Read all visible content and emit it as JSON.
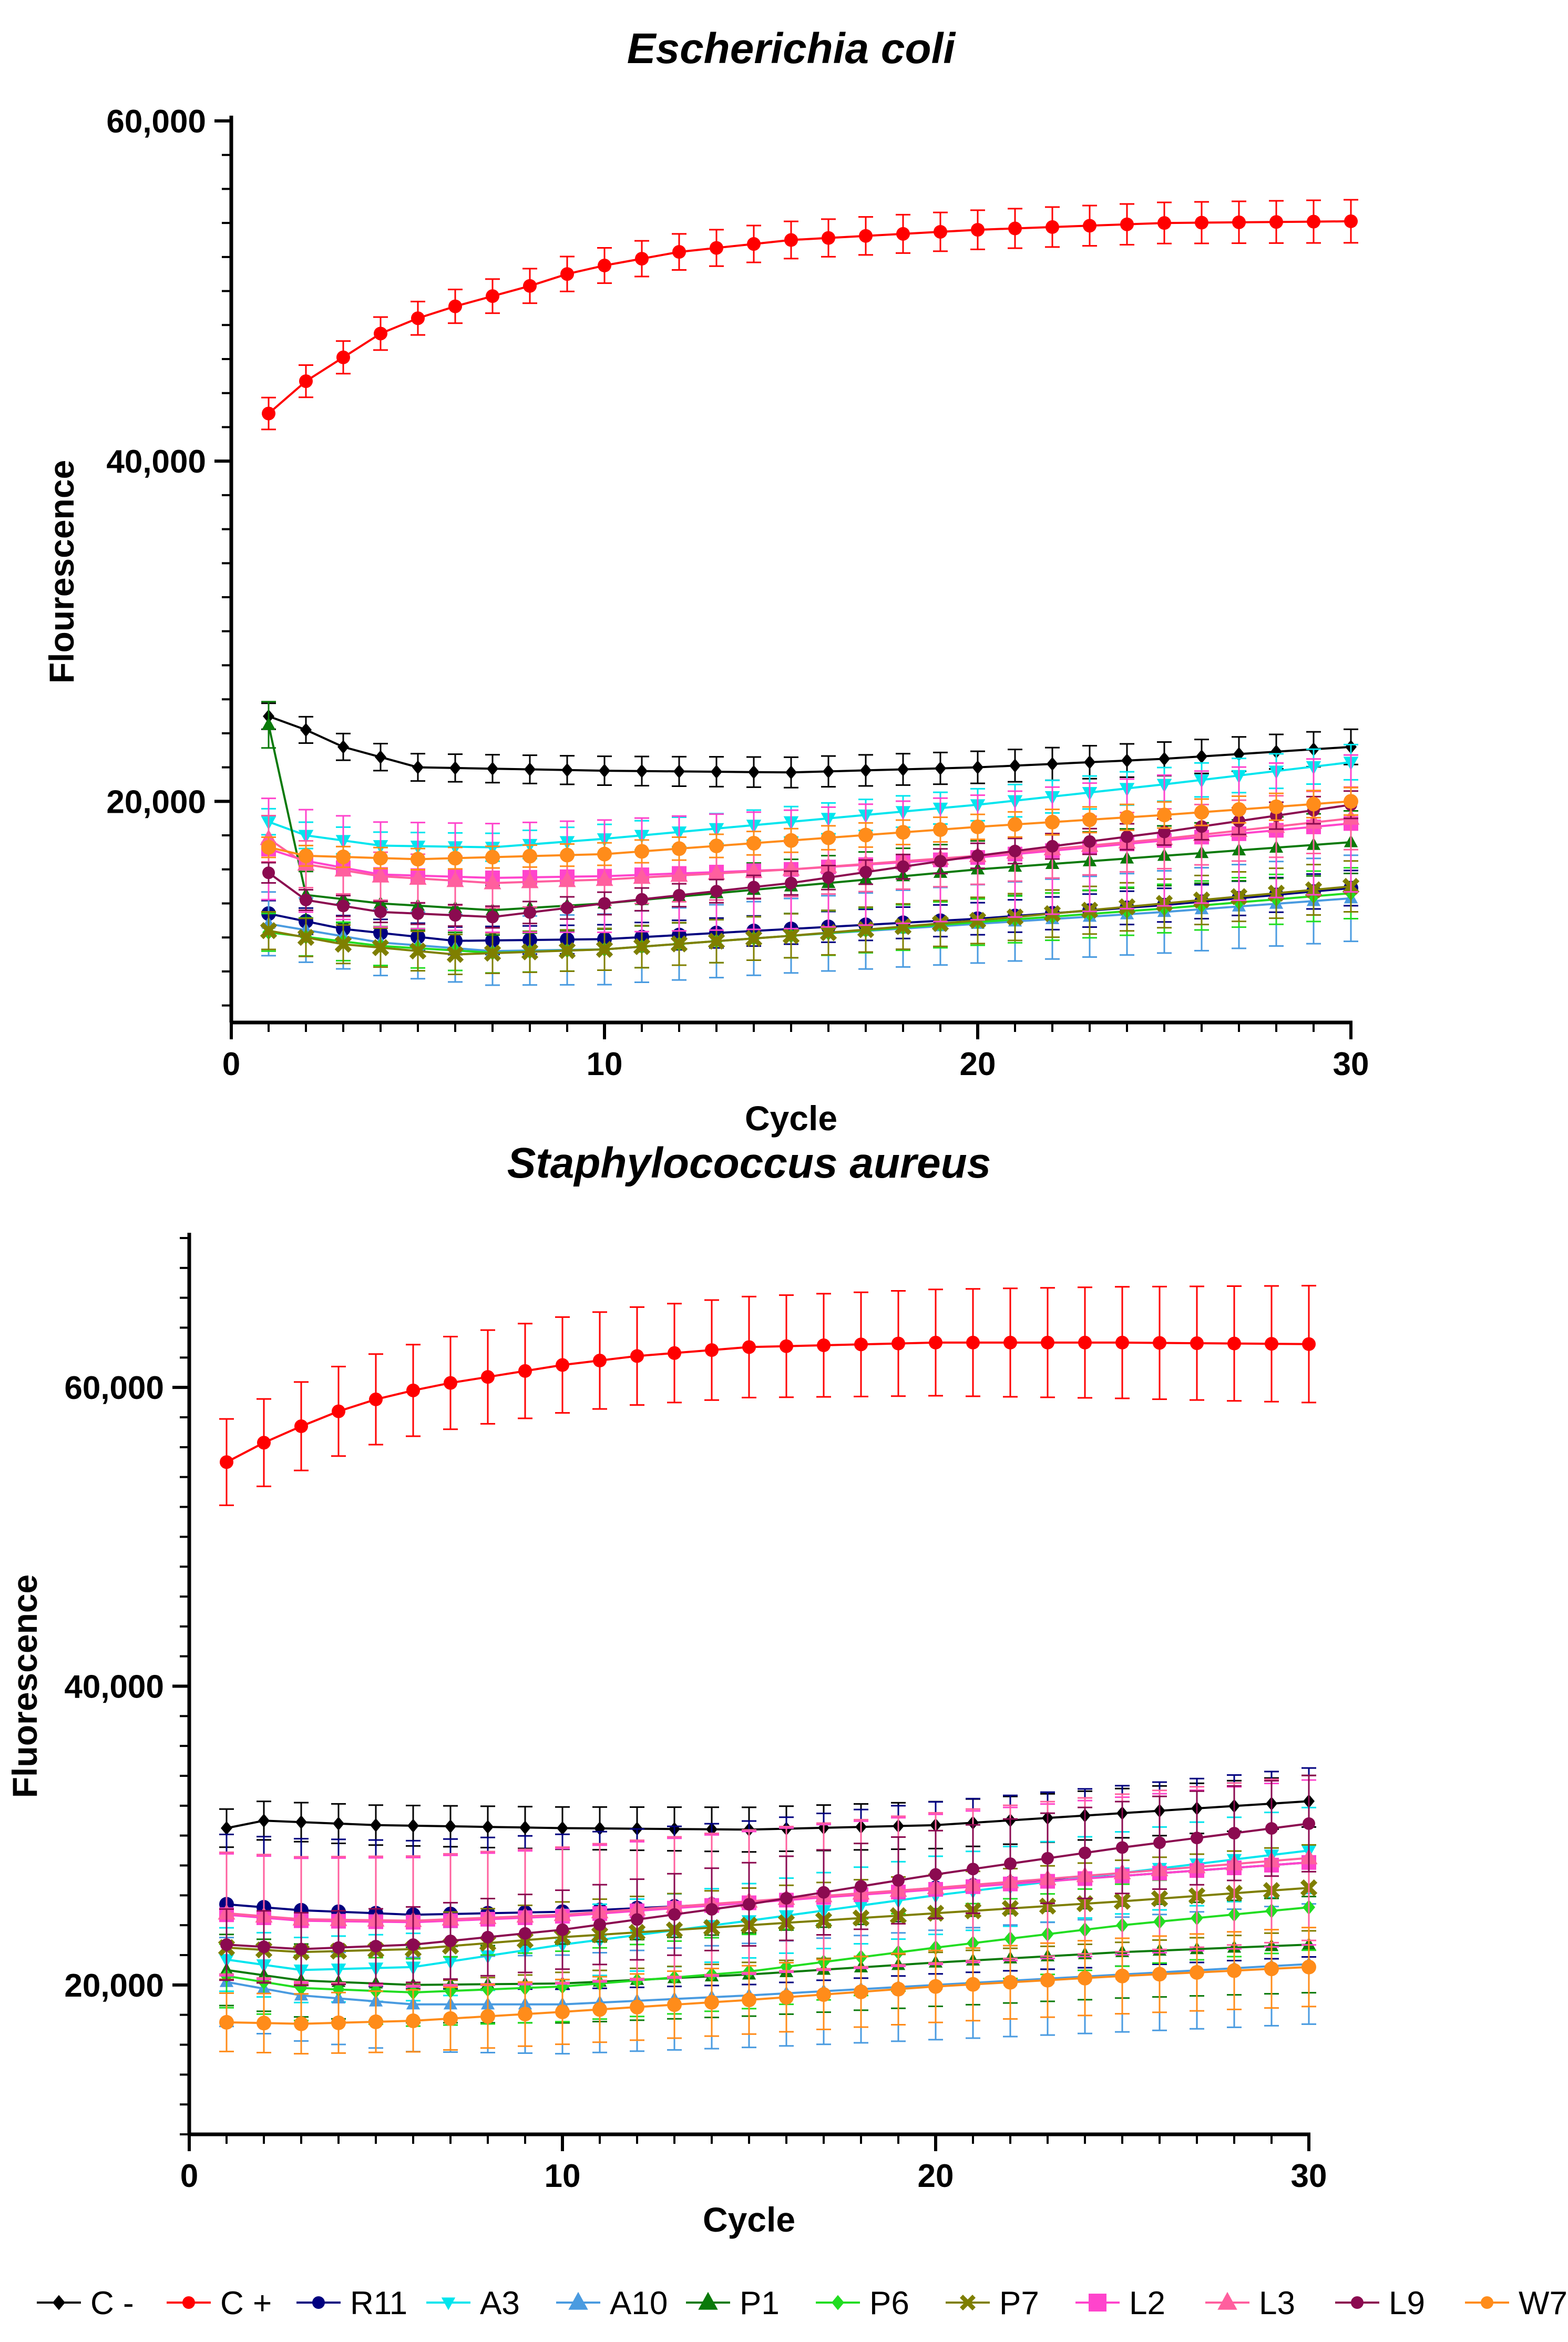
{
  "legend": {
    "entries": [
      {
        "key": "Cminus",
        "label": "C -",
        "color": "#000000",
        "marker": "diamond"
      },
      {
        "key": "Cplus",
        "label": "C +",
        "color": "#ff0000",
        "marker": "circle"
      },
      {
        "key": "R11",
        "label": "R11",
        "color": "#00007f",
        "marker": "circle"
      },
      {
        "key": "A3",
        "label": "A3",
        "color": "#00e5ee",
        "marker": "triangle-down"
      },
      {
        "key": "A10",
        "label": "A10",
        "color": "#4a9be0",
        "marker": "triangle-up"
      },
      {
        "key": "P1",
        "label": "P1",
        "color": "#0a7a0a",
        "marker": "triangle-up"
      },
      {
        "key": "P6",
        "label": "P6",
        "color": "#22dd22",
        "marker": "diamond"
      },
      {
        "key": "P7",
        "label": "P7",
        "color": "#7f7f00",
        "marker": "x"
      },
      {
        "key": "L2",
        "label": "L2",
        "color": "#ff44cc",
        "marker": "square"
      },
      {
        "key": "L3",
        "label": "L3",
        "color": "#ff5f9e",
        "marker": "triangle-up"
      },
      {
        "key": "L9",
        "label": "L9",
        "color": "#8b0a50",
        "marker": "circle"
      },
      {
        "key": "W7",
        "label": "W7",
        "color": "#ff8c1a",
        "marker": "circle"
      }
    ]
  },
  "chart_data": [
    {
      "type": "line",
      "title": "Escherichia coli",
      "xlabel": "Cycle",
      "ylabel": "Flourescence",
      "xlim": [
        0,
        30
      ],
      "ylim": [
        7000,
        60000
      ],
      "xticks": [
        0,
        10,
        20,
        30
      ],
      "xtick_labels": [
        "0",
        "10",
        "20",
        "30"
      ],
      "yticks": [
        20000,
        40000,
        60000
      ],
      "ytick_labels": [
        "20,000",
        "40,000",
        "60,000"
      ],
      "ymajor_labeled": true,
      "grid": false,
      "series": [
        {
          "key": "Cminus",
          "start": 25000,
          "anchors": [
            [
              2,
              24200
            ],
            [
              3,
              23200
            ],
            [
              5,
              22000
            ],
            [
              10,
              21800
            ],
            [
              15,
              21700
            ],
            [
              20,
              22000
            ],
            [
              25,
              22500
            ],
            [
              30,
              23200
            ]
          ],
          "err": 900
        },
        {
          "key": "Cplus",
          "start": 42800,
          "anchors": [
            [
              2,
              44700
            ],
            [
              3,
              46100
            ],
            [
              4,
              47500
            ],
            [
              5,
              48400
            ],
            [
              6,
              49100
            ],
            [
              7,
              49700
            ],
            [
              8,
              50300
            ],
            [
              9,
              51000
            ],
            [
              10,
              51500
            ],
            [
              12,
              52300
            ],
            [
              15,
              53000
            ],
            [
              20,
              53600
            ],
            [
              25,
              54000
            ],
            [
              30,
              54100
            ]
          ],
          "err": 1100
        },
        {
          "key": "R11",
          "start": 13400,
          "anchors": [
            [
              3,
              12500
            ],
            [
              6,
              11800
            ],
            [
              10,
              11900
            ],
            [
              15,
              12500
            ],
            [
              20,
              13100
            ],
            [
              25,
              13900
            ],
            [
              30,
              14900
            ]
          ],
          "err": 900
        },
        {
          "key": "A3",
          "start": 18800,
          "anchors": [
            [
              2,
              18000
            ],
            [
              4,
              17400
            ],
            [
              7,
              17300
            ],
            [
              10,
              17800
            ],
            [
              15,
              18800
            ],
            [
              20,
              19800
            ],
            [
              25,
              21000
            ],
            [
              30,
              22300
            ]
          ],
          "err": 900
        },
        {
          "key": "A10",
          "start": 12800,
          "anchors": [
            [
              4,
              11700
            ],
            [
              7,
              11200
            ],
            [
              10,
              11300
            ],
            [
              15,
              12100
            ],
            [
              20,
              12800
            ],
            [
              25,
              13500
            ],
            [
              30,
              14300
            ]
          ],
          "err": 2200
        },
        {
          "key": "P1",
          "start": 24500,
          "anchors": [
            [
              2,
              14500
            ],
            [
              4,
              14000
            ],
            [
              7,
              13600
            ],
            [
              10,
              14000
            ],
            [
              15,
              15000
            ],
            [
              20,
              16000
            ],
            [
              25,
              16800
            ],
            [
              30,
              17600
            ]
          ],
          "err": 1600
        },
        {
          "key": "P6",
          "start": 12300,
          "anchors": [
            [
              4,
              11500
            ],
            [
              7,
              11100
            ],
            [
              10,
              11300
            ],
            [
              15,
              12100
            ],
            [
              20,
              12900
            ],
            [
              25,
              13700
            ],
            [
              30,
              14600
            ]
          ],
          "err": 1300
        },
        {
          "key": "P7",
          "start": 12400,
          "anchors": [
            [
              3,
              11600
            ],
            [
              6,
              11000
            ],
            [
              10,
              11300
            ],
            [
              15,
              12100
            ],
            [
              20,
              13000
            ],
            [
              25,
              14000
            ],
            [
              30,
              15000
            ]
          ],
          "err": 1300
        },
        {
          "key": "L2",
          "start": 17200,
          "anchors": [
            [
              2,
              16500
            ],
            [
              4,
              15700
            ],
            [
              7,
              15500
            ],
            [
              10,
              15600
            ],
            [
              15,
              16000
            ],
            [
              20,
              16700
            ],
            [
              25,
              17700
            ],
            [
              30,
              18700
            ]
          ],
          "err": 3500
        },
        {
          "key": "L3",
          "start": 17800,
          "anchors": [
            [
              2,
              16300
            ],
            [
              4,
              15600
            ],
            [
              7,
              15200
            ],
            [
              10,
              15400
            ],
            [
              15,
              16000
            ],
            [
              20,
              16800
            ],
            [
              25,
              17800
            ],
            [
              30,
              19000
            ]
          ],
          "err": 1600
        },
        {
          "key": "L9",
          "start": 15800,
          "anchors": [
            [
              2,
              14200
            ],
            [
              4,
              13500
            ],
            [
              7,
              13200
            ],
            [
              10,
              14000
            ],
            [
              15,
              15200
            ],
            [
              20,
              16800
            ],
            [
              25,
              18200
            ],
            [
              30,
              19800
            ]
          ],
          "err": 700
        },
        {
          "key": "W7",
          "start": 17300,
          "anchors": [
            [
              2,
              16800
            ],
            [
              5,
              16600
            ],
            [
              10,
              16900
            ],
            [
              15,
              17700
            ],
            [
              20,
              18500
            ],
            [
              25,
              19200
            ],
            [
              30,
              20000
            ]
          ],
          "err": 700
        }
      ]
    },
    {
      "type": "line",
      "title": "Staphylococcus aureus",
      "xlabel": "Cycle",
      "ylabel": "Fluorescence",
      "xlim": [
        0,
        30
      ],
      "ylim": [
        10000,
        70000
      ],
      "xticks": [
        0,
        10,
        20,
        30
      ],
      "xtick_labels": [
        "0",
        "10",
        "20",
        "30"
      ],
      "yticks": [
        20000,
        40000,
        60000
      ],
      "ytick_labels": [
        "20,000",
        "40,000",
        "60,000"
      ],
      "grid": false,
      "series": [
        {
          "key": "Cminus",
          "start": 30500,
          "anchors": [
            [
              2,
              31000
            ],
            [
              5,
              30700
            ],
            [
              10,
              30500
            ],
            [
              15,
              30400
            ],
            [
              20,
              30700
            ],
            [
              25,
              31500
            ],
            [
              30,
              32300
            ]
          ],
          "err": 1500
        },
        {
          "key": "Cplus",
          "start": 55000,
          "anchors": [
            [
              2,
              56300
            ],
            [
              3,
              57400
            ],
            [
              4,
              58400
            ],
            [
              5,
              59200
            ],
            [
              6,
              59800
            ],
            [
              7,
              60300
            ],
            [
              8,
              60700
            ],
            [
              9,
              61100
            ],
            [
              10,
              61500
            ],
            [
              12,
              62100
            ],
            [
              15,
              62700
            ],
            [
              20,
              63000
            ],
            [
              25,
              63000
            ],
            [
              30,
              62900
            ]
          ],
          "err": 3400
        },
        {
          "key": "R11",
          "start": 25400,
          "anchors": [
            [
              3,
              25000
            ],
            [
              6,
              24700
            ],
            [
              10,
              24900
            ],
            [
              15,
              25500
            ],
            [
              20,
              26500
            ],
            [
              25,
              27300
            ],
            [
              30,
              28200
            ]
          ],
          "err": 5500
        },
        {
          "key": "A3",
          "start": 21700,
          "anchors": [
            [
              3,
              21000
            ],
            [
              6,
              21200
            ],
            [
              10,
              22700
            ],
            [
              15,
              24300
            ],
            [
              20,
              26000
            ],
            [
              25,
              27500
            ],
            [
              30,
              29000
            ]
          ],
          "err": 2500
        },
        {
          "key": "A10",
          "start": 20200,
          "anchors": [
            [
              3,
              19300
            ],
            [
              6,
              18700
            ],
            [
              10,
              18700
            ],
            [
              15,
              19300
            ],
            [
              20,
              20000
            ],
            [
              25,
              20700
            ],
            [
              30,
              21400
            ]
          ],
          "err": 3500
        },
        {
          "key": "P1",
          "start": 21000,
          "anchors": [
            [
              3,
              20300
            ],
            [
              6,
              20000
            ],
            [
              10,
              20100
            ],
            [
              15,
              20700
            ],
            [
              20,
              21500
            ],
            [
              25,
              22200
            ],
            [
              30,
              22700
            ]
          ],
          "err": 2800
        },
        {
          "key": "P6",
          "start": 20600,
          "anchors": [
            [
              3,
              19800
            ],
            [
              6,
              19500
            ],
            [
              10,
              19900
            ],
            [
              15,
              20900
            ],
            [
              20,
              22500
            ],
            [
              25,
              24000
            ],
            [
              30,
              25200
            ]
          ],
          "err": 2500
        },
        {
          "key": "P7",
          "start": 22500,
          "anchors": [
            [
              3,
              22200
            ],
            [
              6,
              22400
            ],
            [
              10,
              23200
            ],
            [
              15,
              24000
            ],
            [
              20,
              24800
            ],
            [
              25,
              25600
            ],
            [
              30,
              26500
            ]
          ],
          "err": 2500
        },
        {
          "key": "L2",
          "start": 24700,
          "anchors": [
            [
              3,
              24300
            ],
            [
              6,
              24200
            ],
            [
              10,
              24600
            ],
            [
              15,
              25500
            ],
            [
              20,
              26400
            ],
            [
              25,
              27300
            ],
            [
              30,
              28200
            ]
          ],
          "err": 4800
        },
        {
          "key": "L3",
          "start": 24800,
          "anchors": [
            [
              3,
              24400
            ],
            [
              6,
              24300
            ],
            [
              10,
              24700
            ],
            [
              15,
              25600
            ],
            [
              20,
              26500
            ],
            [
              25,
              27500
            ],
            [
              30,
              28500
            ]
          ],
          "err": 4800
        },
        {
          "key": "L9",
          "start": 22700,
          "anchors": [
            [
              3,
              22400
            ],
            [
              6,
              22700
            ],
            [
              10,
              23700
            ],
            [
              15,
              25400
            ],
            [
              20,
              27400
            ],
            [
              25,
              29200
            ],
            [
              30,
              30800
            ]
          ],
          "err": 2800
        },
        {
          "key": "W7",
          "start": 17500,
          "anchors": [
            [
              3,
              17400
            ],
            [
              6,
              17600
            ],
            [
              10,
              18200
            ],
            [
              15,
              19000
            ],
            [
              20,
              19900
            ],
            [
              25,
              20600
            ],
            [
              30,
              21200
            ]
          ],
          "err": 2300
        }
      ]
    }
  ]
}
